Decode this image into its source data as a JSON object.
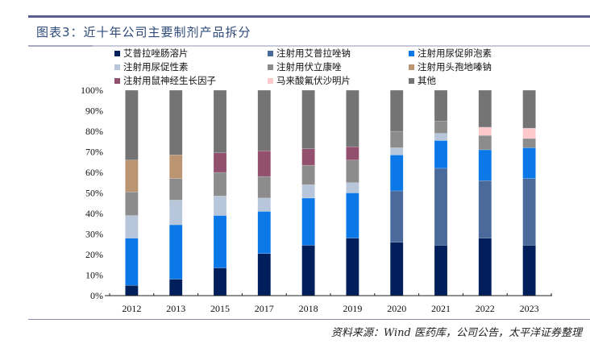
{
  "header": {
    "title": "图表3：近十年公司主要制剂产品拆分"
  },
  "footer": {
    "source": "资料来源：Wind 医药库，公司公告，太平洋证券整理"
  },
  "chart_data": {
    "type": "bar",
    "stacked": true,
    "percent": true,
    "title": "图表3：近十年公司主要制剂产品拆分",
    "xlabel": "",
    "ylabel": "",
    "ylim": [
      0,
      100
    ],
    "yticks": [
      "0%",
      "10%",
      "20%",
      "30%",
      "40%",
      "50%",
      "60%",
      "70%",
      "80%",
      "90%",
      "100%"
    ],
    "grid": false,
    "legend_position": "top",
    "categories": [
      "2012",
      "2013",
      "2015",
      "2017",
      "2018",
      "2019",
      "2020",
      "2021",
      "2022",
      "2023"
    ],
    "series": [
      {
        "name": "艾普拉唑肠溶片",
        "color": "#001f5b",
        "values": [
          5,
          8,
          13.5,
          20.5,
          24.5,
          28,
          26,
          24.5,
          28,
          24.5
        ]
      },
      {
        "name": "注射用艾普拉唑钠",
        "color": "#4a6a9c",
        "values": [
          0,
          0,
          0,
          0,
          0,
          0,
          25,
          37.5,
          28,
          32.5
        ]
      },
      {
        "name": "注射用尿促卵泡素",
        "color": "#0a78e6",
        "values": [
          23,
          26.5,
          25.5,
          20.5,
          23,
          22,
          17.5,
          13.5,
          15,
          15
        ]
      },
      {
        "name": "注射用尿促性素",
        "color": "#b7c6da",
        "values": [
          11,
          12,
          9.5,
          6.5,
          6.5,
          5,
          3.5,
          3.5,
          0,
          0
        ]
      },
      {
        "name": "注射用伏立康唑",
        "color": "#8c8c8c",
        "values": [
          11.5,
          10.5,
          11.5,
          10.5,
          9.5,
          11,
          8,
          6,
          7,
          4.5
        ]
      },
      {
        "name": "注射用头孢地嗪钠",
        "color": "#bb9572",
        "values": [
          15.5,
          11.5,
          0,
          0,
          0,
          0,
          0,
          0,
          0,
          0
        ]
      },
      {
        "name": "注射用鼠神经生长因子",
        "color": "#93506e",
        "values": [
          0,
          0,
          9.5,
          12.5,
          8,
          6.5,
          0,
          0,
          0,
          0
        ]
      },
      {
        "name": "马来酸氟伏沙明片",
        "color": "#fdc9cb",
        "values": [
          0,
          0,
          0,
          0,
          0,
          0,
          0,
          0,
          4,
          5
        ]
      },
      {
        "name": "其他",
        "color": "#747474",
        "values": [
          34,
          31.5,
          30.5,
          29.5,
          28.5,
          27.5,
          20,
          15,
          18,
          18.5
        ]
      }
    ]
  }
}
